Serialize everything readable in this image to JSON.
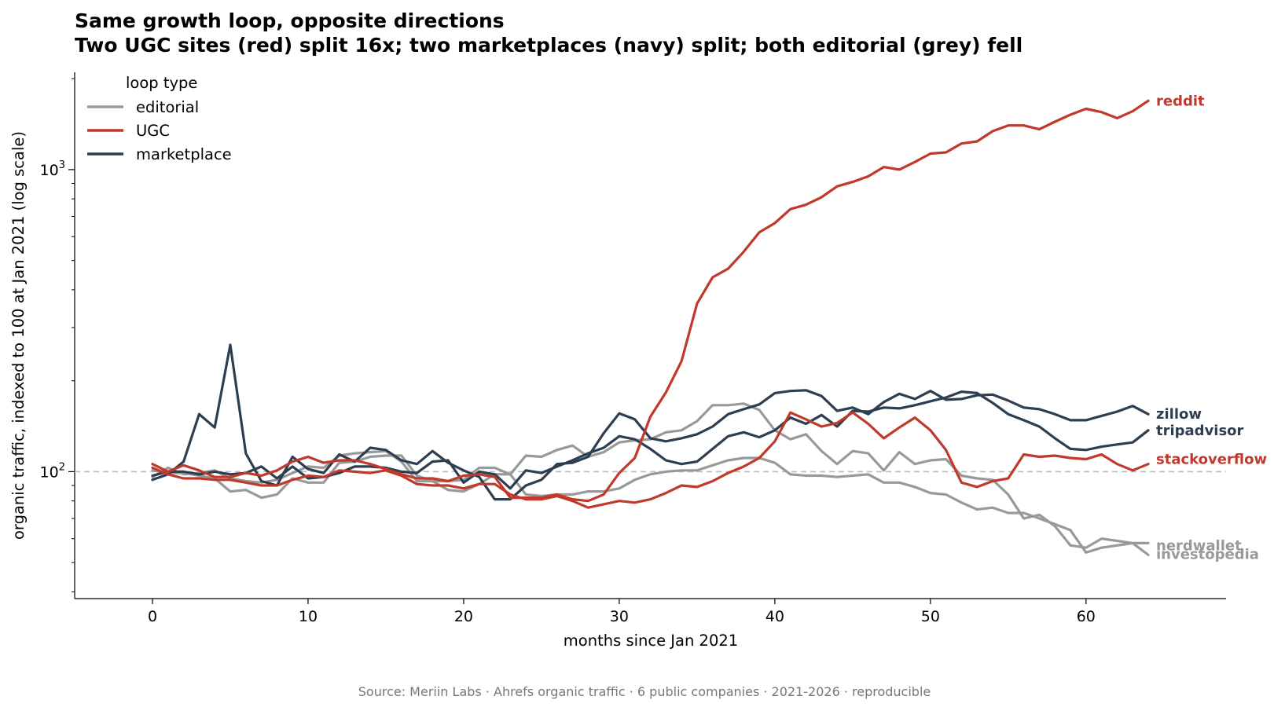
{
  "chart_data": {
    "type": "line",
    "title": "Same growth loop, opposite directions",
    "subtitle": "Two UGC sites (red) split 16x; two marketplaces (navy) split; both editorial (grey) fell",
    "xlabel": "months since Jan 2021",
    "ylabel": "organic traffic, indexed to 100 at Jan 2021 (log scale)",
    "y_scale": "log",
    "xlim": [
      -5,
      69
    ],
    "ylim": [
      38,
      2100
    ],
    "x_ticks": [
      "0",
      "10",
      "20",
      "30",
      "40",
      "50",
      "60"
    ],
    "y_ticks": [
      {
        "value": 100,
        "base": "10",
        "exp": "2"
      },
      {
        "value": 1000,
        "base": "10",
        "exp": "3"
      }
    ],
    "reference_line": {
      "y": 100,
      "style": "dashed"
    },
    "grid": false,
    "legend": {
      "title": "loop type",
      "position": "top-left",
      "entries": [
        {
          "label": "editorial",
          "color": "#999999"
        },
        {
          "label": "UGC",
          "color": "#c0392b"
        },
        {
          "label": "marketplace",
          "color": "#2c3e50"
        }
      ]
    },
    "colors": {
      "editorial": "#999999",
      "UGC": "#c0392b",
      "marketplace": "#2c3e50"
    },
    "x": [
      0,
      1,
      2,
      3,
      4,
      5,
      6,
      7,
      8,
      9,
      10,
      11,
      12,
      13,
      14,
      15,
      16,
      17,
      18,
      19,
      20,
      21,
      22,
      23,
      24,
      25,
      26,
      27,
      28,
      29,
      30,
      31,
      32,
      33,
      34,
      35,
      36,
      37,
      38,
      39,
      40,
      41,
      42,
      43,
      44,
      45,
      46,
      47,
      48,
      49,
      50,
      51,
      52,
      53,
      54,
      55,
      56,
      57,
      58,
      59,
      60,
      61,
      62,
      63,
      64
    ],
    "series": [
      {
        "name": "reddit",
        "group": "UGC",
        "values": [
          106,
          100,
          105,
          101,
          96,
          96,
          99,
          97,
          101,
          108,
          112,
          107,
          109,
          109,
          106,
          102,
          98,
          95,
          95,
          93,
          97,
          98,
          96,
          82,
          82,
          82,
          84,
          81,
          80,
          84,
          99,
          111,
          152,
          183,
          232,
          360,
          440,
          470,
          535,
          620,
          665,
          740,
          765,
          810,
          880,
          910,
          950,
          1020,
          1000,
          1060,
          1130,
          1140,
          1220,
          1240,
          1340,
          1400,
          1400,
          1360,
          1440,
          1520,
          1590,
          1550,
          1480,
          1560,
          1690
        ]
      },
      {
        "name": "stackoverflow",
        "group": "UGC",
        "values": [
          103,
          98,
          95,
          95,
          94,
          94,
          92,
          90,
          90,
          94,
          97,
          96,
          101,
          100,
          99,
          101,
          97,
          91,
          90,
          90,
          88,
          91,
          91,
          84,
          81,
          81,
          83,
          80,
          76,
          78,
          80,
          79,
          81,
          85,
          90,
          89,
          93,
          99,
          104,
          111,
          126,
          157,
          149,
          141,
          145,
          157,
          144,
          129,
          140,
          151,
          137,
          118,
          92,
          89,
          93,
          95,
          114,
          112,
          113,
          111,
          110,
          114,
          106,
          101,
          106
        ]
      },
      {
        "name": "investopedia",
        "group": "editorial",
        "values": [
          96,
          103,
          98,
          99,
          101,
          95,
          93,
          92,
          94,
          99,
          104,
          103,
          113,
          115,
          116,
          117,
          108,
          93,
          93,
          93,
          94,
          103,
          103,
          98,
          113,
          112,
          118,
          122,
          112,
          116,
          125,
          127,
          128,
          135,
          137,
          147,
          166,
          166,
          168,
          160,
          137,
          128,
          133,
          117,
          106,
          117,
          115,
          101,
          116,
          106,
          109,
          110,
          97,
          95,
          94,
          84,
          70,
          72,
          66,
          57,
          56,
          60,
          59,
          58,
          53
        ]
      },
      {
        "name": "nerdwallet",
        "group": "editorial",
        "values": [
          101,
          99,
          99,
          97,
          95,
          86,
          87,
          82,
          84,
          95,
          92,
          92,
          107,
          108,
          112,
          113,
          113,
          97,
          93,
          87,
          86,
          91,
          98,
          98,
          84,
          83,
          84,
          84,
          86,
          86,
          88,
          94,
          98,
          100,
          101,
          101,
          105,
          109,
          111,
          111,
          107,
          98,
          97,
          97,
          96,
          97,
          98,
          92,
          92,
          89,
          85,
          84,
          79,
          75,
          76,
          73,
          73,
          70,
          67,
          64,
          54,
          56,
          57,
          58,
          58
        ]
      },
      {
        "name": "zillow",
        "group": "marketplace",
        "values": [
          94,
          98,
          108,
          155,
          140,
          263,
          115,
          93,
          90,
          112,
          102,
          99,
          114,
          108,
          120,
          118,
          109,
          106,
          117,
          107,
          101,
          96,
          81,
          81,
          90,
          94,
          106,
          107,
          112,
          134,
          156,
          149,
          129,
          126,
          129,
          133,
          141,
          155,
          161,
          167,
          182,
          185,
          186,
          178,
          159,
          163,
          155,
          170,
          181,
          174,
          185,
          173,
          174,
          179,
          180,
          172,
          163,
          161,
          155,
          148,
          148,
          153,
          158,
          165,
          155
        ]
      },
      {
        "name": "tripadvisor",
        "group": "marketplace",
        "values": [
          97,
          100,
          100,
          98,
          100,
          98,
          99,
          104,
          95,
          104,
          95,
          96,
          99,
          104,
          104,
          103,
          100,
          99,
          108,
          109,
          92,
          100,
          98,
          88,
          101,
          99,
          104,
          109,
          115,
          120,
          131,
          128,
          119,
          109,
          106,
          108,
          119,
          131,
          135,
          130,
          137,
          151,
          144,
          154,
          141,
          159,
          158,
          163,
          162,
          166,
          171,
          176,
          184,
          182,
          169,
          155,
          148,
          141,
          129,
          119,
          118,
          121,
          123,
          125,
          137
        ]
      }
    ],
    "annotations": [
      {
        "label": "reddit",
        "series": "reddit"
      },
      {
        "label": "zillow",
        "series": "zillow"
      },
      {
        "label": "tripadvisor",
        "series": "tripadvisor"
      },
      {
        "label": "stackoverflow",
        "series": "stackoverflow"
      },
      {
        "label": "investopedia",
        "series": "investopedia"
      },
      {
        "label": "nerdwallet",
        "series": "nerdwallet"
      }
    ]
  },
  "source": "Source: Meriin Labs · Ahrefs organic traffic · 6 public companies · 2021-2026 · reproducible"
}
